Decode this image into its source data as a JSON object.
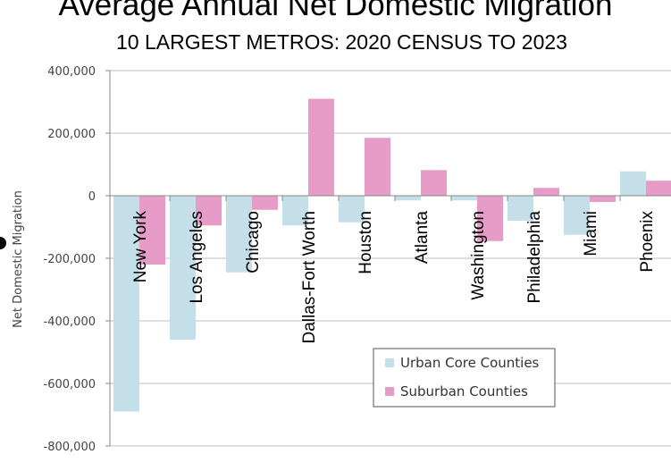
{
  "colors": {
    "urban": "#c5dfe8",
    "suburban": "#e79cc8",
    "grid": "#bfbfbf",
    "axis": "#888888"
  },
  "chart_data": {
    "type": "bar",
    "title": "Average Annual Net Domestic Migration",
    "subtitle": "10 LARGEST METROS: 2020 CENSUS TO 2023",
    "xlabel": "",
    "ylabel": "Net Domestic Migration",
    "ylim": [
      -800000,
      400000
    ],
    "yticks": [
      400000,
      200000,
      0,
      -200000,
      -400000,
      -600000,
      -800000
    ],
    "ytick_labels": [
      "400,000",
      "200,000",
      "0",
      "-200,000",
      "-400,000",
      "-600,000",
      "-800,000"
    ],
    "grid": true,
    "legend_position": "bottom-right",
    "categories": [
      "New York",
      "Los Angeles",
      "Chicago",
      "Dallas-Fort Worth",
      "Houston",
      "Atlanta",
      "Washington",
      "Philadelphia",
      "Miami",
      "Phoenix"
    ],
    "series": [
      {
        "name": "Urban Core Counties",
        "color": "#c5dfe8",
        "values": [
          -690000,
          -460000,
          -245000,
          -95000,
          -85000,
          -15000,
          -15000,
          -80000,
          -125000,
          78000
        ]
      },
      {
        "name": "Suburban Counties",
        "color": "#e79cc8",
        "values": [
          -220000,
          -95000,
          -45000,
          310000,
          185000,
          82000,
          -145000,
          25000,
          -20000,
          48000
        ]
      }
    ]
  }
}
